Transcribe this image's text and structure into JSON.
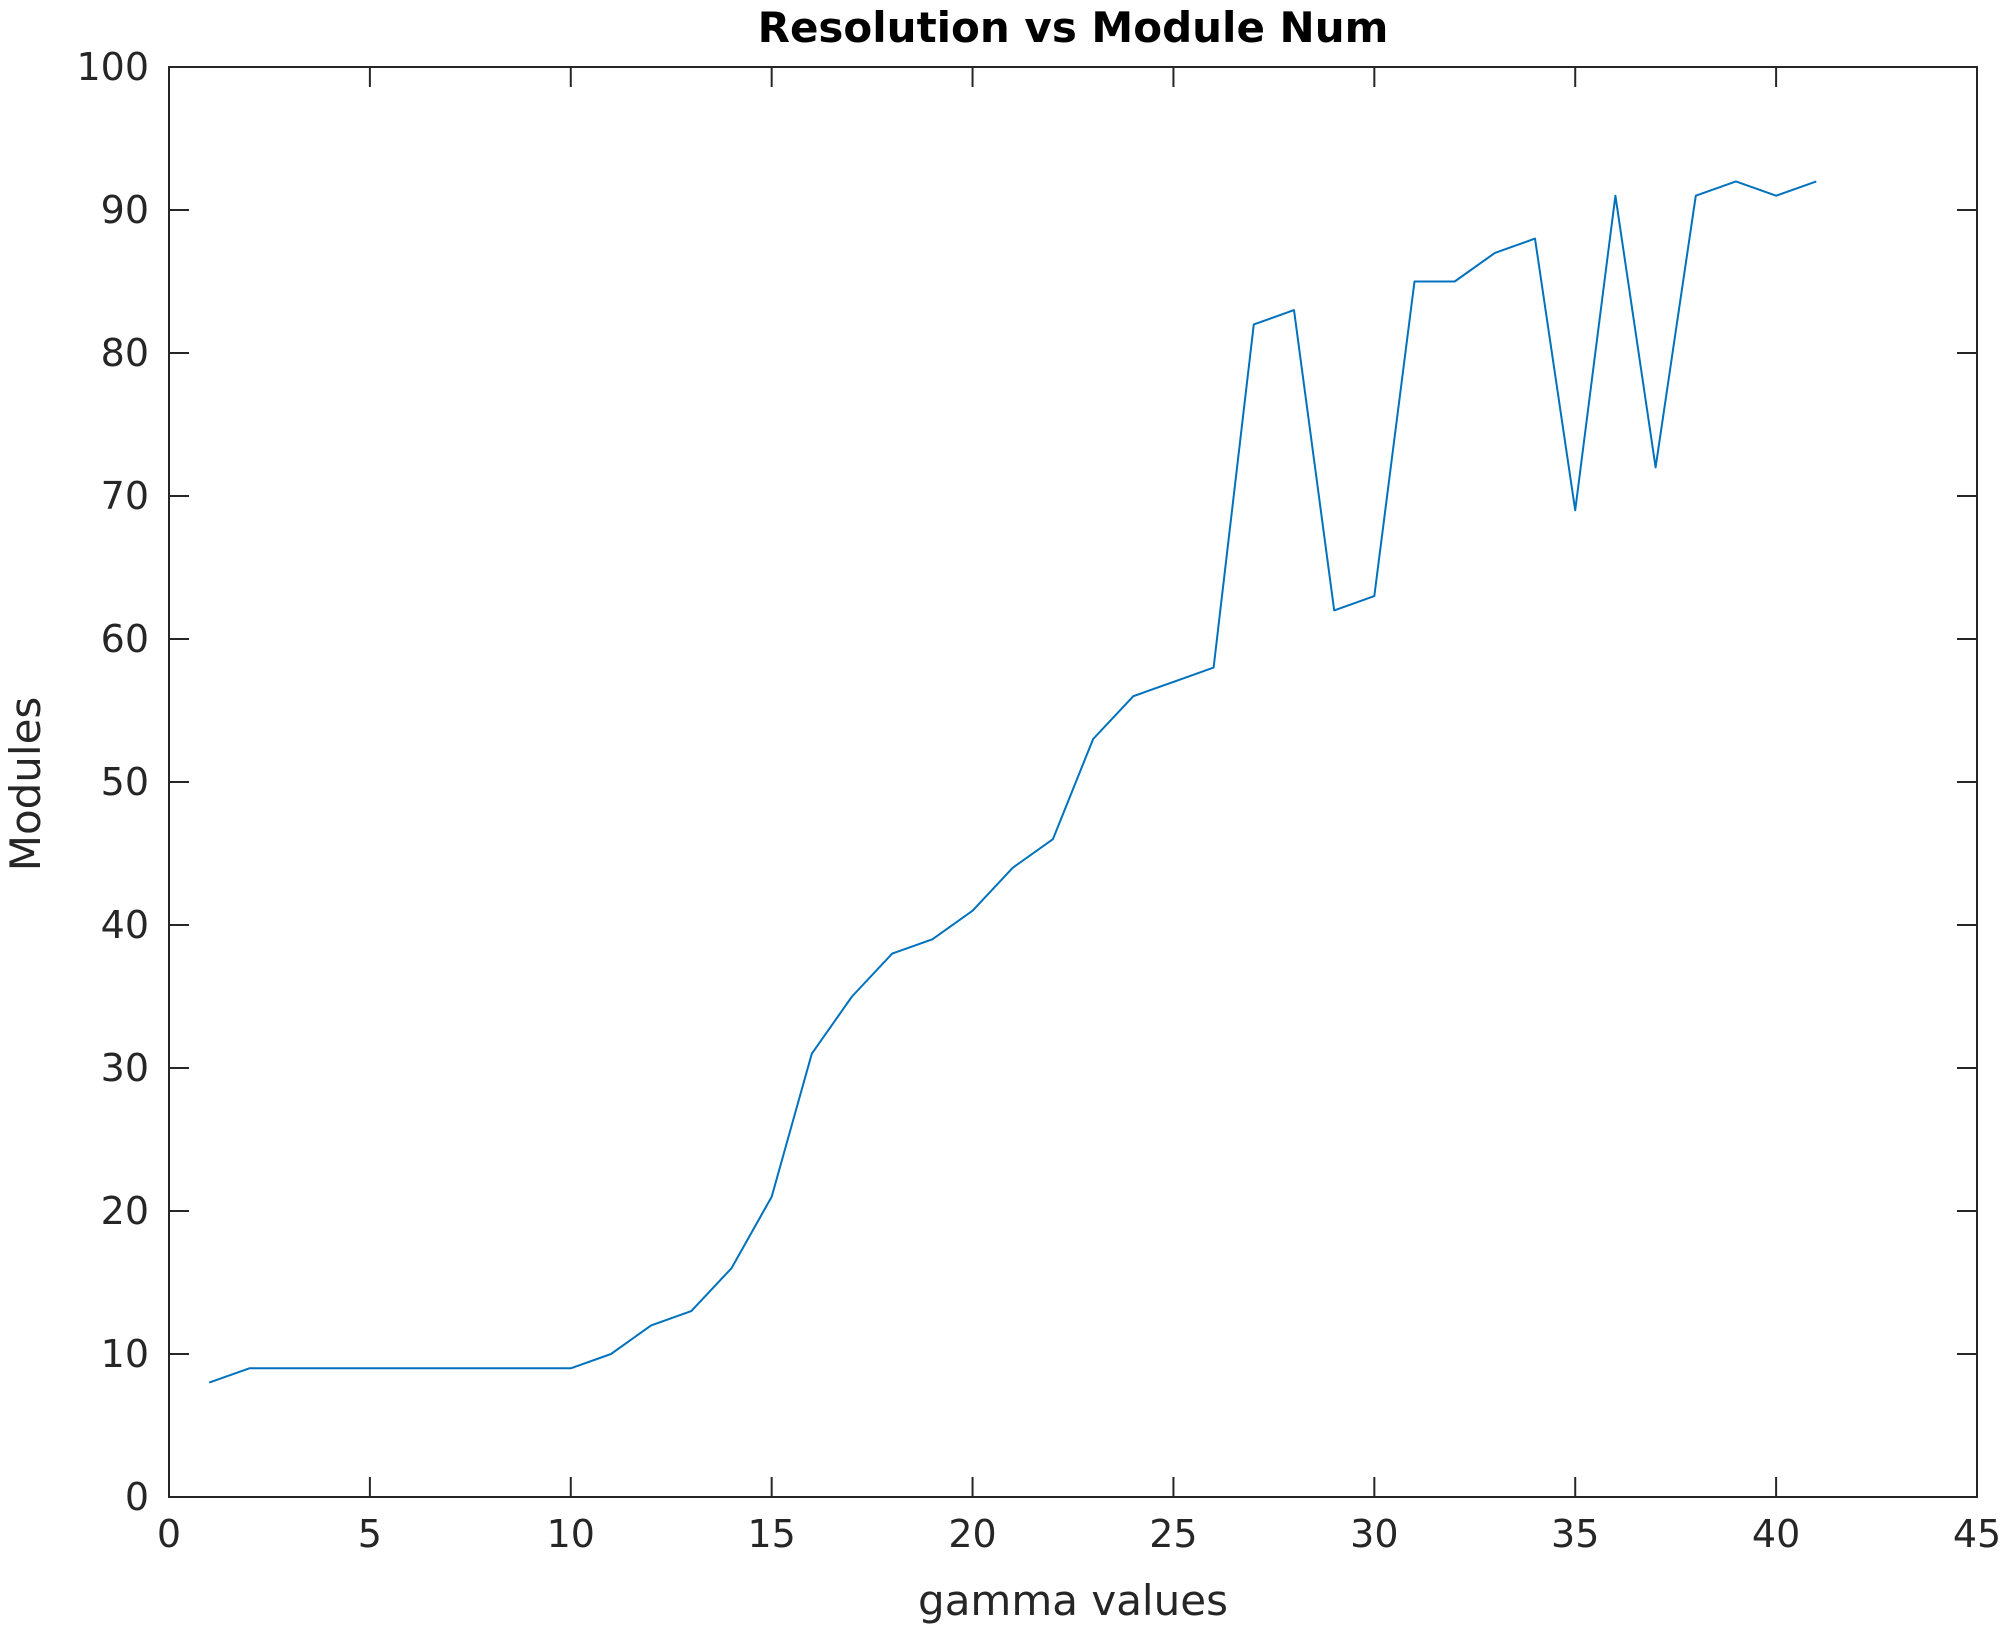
{
  "chart_data": {
    "type": "line",
    "title": "Resolution vs Module Num",
    "xlabel": "gamma values",
    "ylabel": "Modules",
    "xlim": [
      0,
      45
    ],
    "ylim": [
      0,
      100
    ],
    "xticks": [
      0,
      5,
      10,
      15,
      20,
      25,
      30,
      35,
      40,
      45
    ],
    "yticks": [
      0,
      10,
      20,
      30,
      40,
      50,
      60,
      70,
      80,
      90,
      100
    ],
    "xtick_labels": [
      "0",
      "5",
      "10",
      "15",
      "20",
      "25",
      "30",
      "35",
      "40",
      "45"
    ],
    "ytick_labels": [
      "0",
      "10",
      "20",
      "30",
      "40",
      "50",
      "60",
      "70",
      "80",
      "90",
      "100"
    ],
    "grid": false,
    "box": true,
    "series": [
      {
        "color": "#0072BD",
        "x": [
          1,
          2,
          3,
          4,
          5,
          6,
          7,
          8,
          9,
          10,
          11,
          12,
          13,
          14,
          15,
          16,
          17,
          18,
          19,
          20,
          21,
          22,
          23,
          24,
          25,
          26,
          27,
          28,
          29,
          30,
          31,
          32,
          33,
          34,
          35,
          36,
          37,
          38,
          39,
          40,
          41
        ],
        "y": [
          8,
          9,
          9,
          9,
          9,
          9,
          9,
          9,
          9,
          9,
          10,
          12,
          13,
          16,
          21,
          31,
          35,
          38,
          39,
          41,
          44,
          46,
          53,
          56,
          57,
          58,
          82,
          83,
          62,
          63,
          85,
          85,
          87,
          88,
          69,
          91,
          72,
          91,
          92,
          91,
          92
        ]
      }
    ]
  }
}
